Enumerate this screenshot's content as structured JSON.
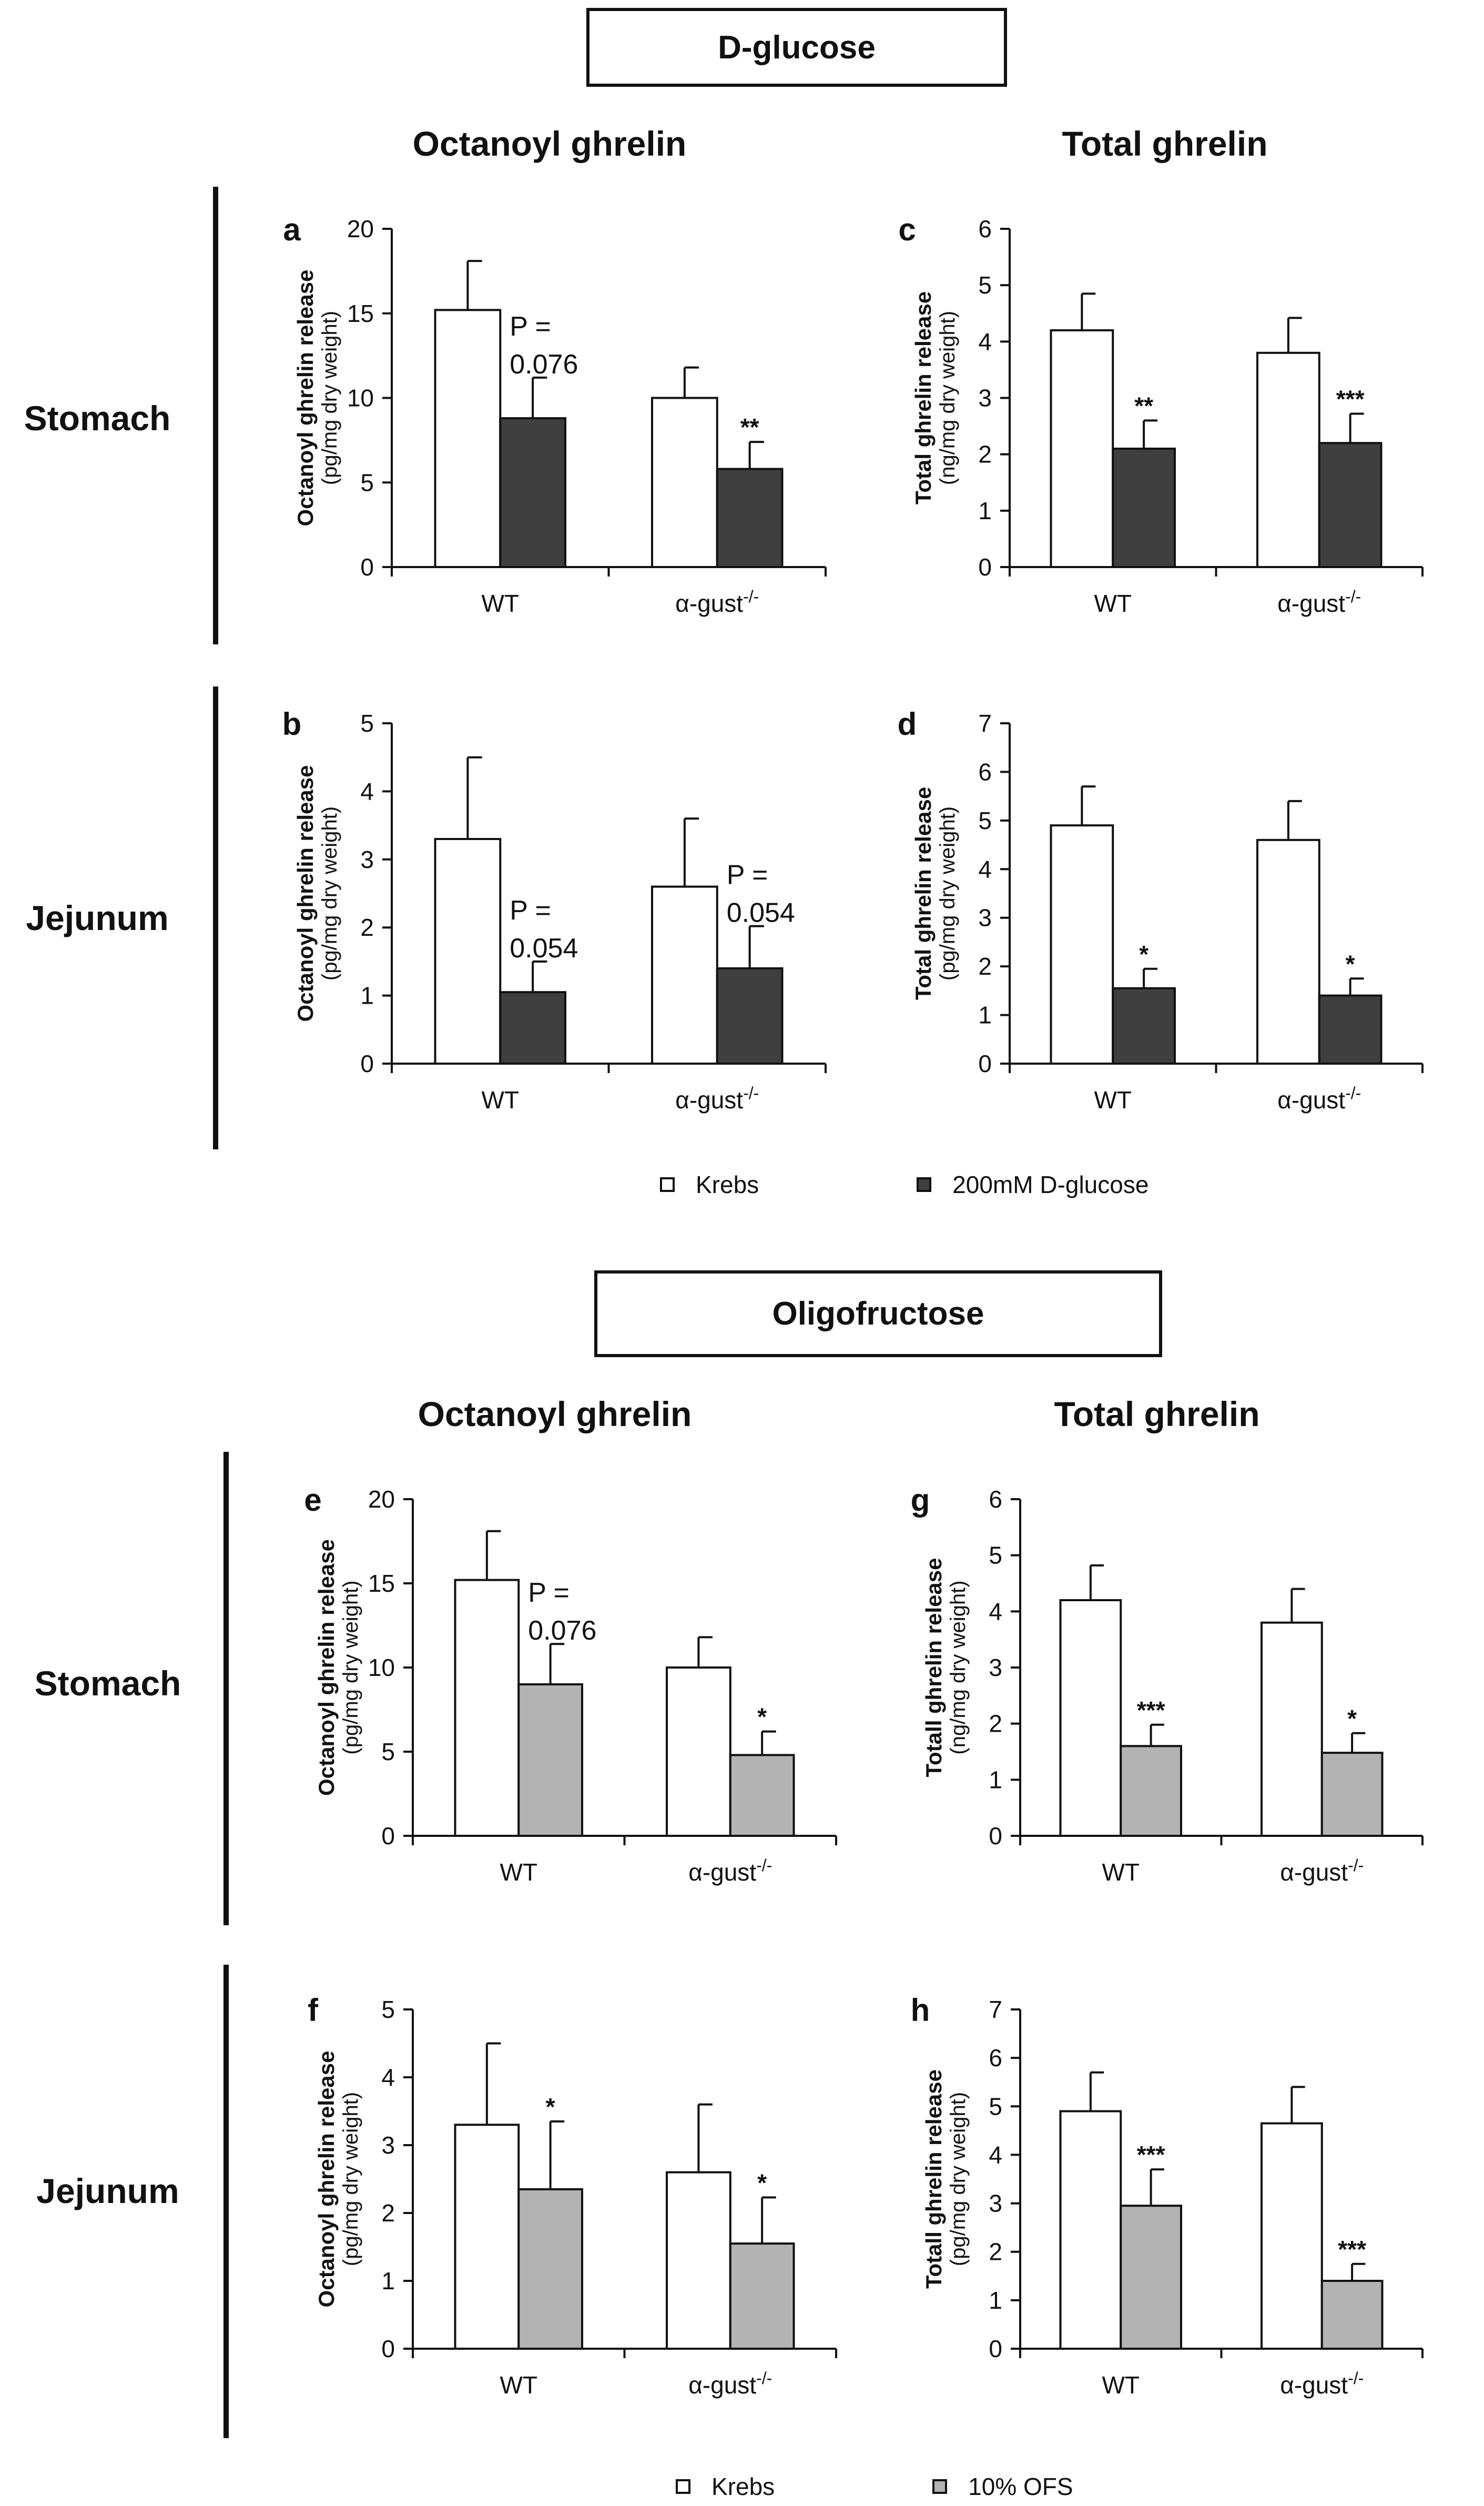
{
  "sections": [
    {
      "title": "D-glucose",
      "col_titles": [
        "Octanoyl ghrelin",
        "Total ghrelin"
      ],
      "row_labels": [
        "Stomach",
        "Jejunum"
      ],
      "legend": [
        {
          "label": "Krebs",
          "color": "#ffffff"
        },
        {
          "label": "200mM D-glucose",
          "color": "#3f3f3f"
        }
      ]
    },
    {
      "title": "Oligofructose",
      "col_titles": [
        "Octanoyl ghrelin",
        "Total ghrelin"
      ],
      "row_labels": [
        "Stomach",
        "Jejunum"
      ],
      "legend": [
        {
          "label": "Krebs",
          "color": "#ffffff"
        },
        {
          "label": "10% OFS",
          "color": "#b3b3b3"
        }
      ]
    }
  ],
  "chart_data": [
    {
      "type": "bar",
      "panel": "a",
      "title": "",
      "ylabel": "Octanoyl ghrelin release",
      "ylabel_sub": "(pg/mg dry weight)",
      "ylim": [
        0,
        20
      ],
      "yticks": [
        0,
        5,
        10,
        15,
        20
      ],
      "categories": [
        "WT",
        "α-gust-/-"
      ],
      "series": [
        {
          "name": "Krebs",
          "color": "#ffffff",
          "values": [
            15.2,
            10.0
          ],
          "errors": [
            2.9,
            1.8
          ]
        },
        {
          "name": "200mM D-glucose",
          "color": "#3f3f3f",
          "values": [
            8.8,
            5.8
          ],
          "errors": [
            2.4,
            1.6
          ]
        }
      ],
      "annotations": [
        {
          "series": 1,
          "index": 0,
          "text": "P =\n0.076"
        },
        {
          "series": 1,
          "index": 1,
          "text": "**"
        }
      ]
    },
    {
      "type": "bar",
      "panel": "b",
      "title": "",
      "ylabel": "Octanoyl ghrelin release",
      "ylabel_sub": "(pg/mg dry weight)",
      "ylim": [
        0,
        5
      ],
      "yticks": [
        0,
        1,
        2,
        3,
        4,
        5
      ],
      "categories": [
        "WT",
        "α-gust-/-"
      ],
      "series": [
        {
          "name": "Krebs",
          "color": "#ffffff",
          "values": [
            3.3,
            2.6
          ],
          "errors": [
            1.2,
            1.0
          ]
        },
        {
          "name": "200mM D-glucose",
          "color": "#3f3f3f",
          "values": [
            1.05,
            1.4
          ],
          "errors": [
            0.45,
            0.62
          ]
        }
      ],
      "annotations": [
        {
          "series": 1,
          "index": 0,
          "text": "P =\n0.054"
        },
        {
          "series": 1,
          "index": 1,
          "text": "P =\n0.054"
        }
      ]
    },
    {
      "type": "bar",
      "panel": "c",
      "title": "",
      "ylabel": "Total ghrelin release",
      "ylabel_sub": "(ng/mg dry weight)",
      "ylim": [
        0,
        6
      ],
      "yticks": [
        0,
        1,
        2,
        3,
        4,
        5,
        6
      ],
      "categories": [
        "WT",
        "α-gust-/-"
      ],
      "series": [
        {
          "name": "Krebs",
          "color": "#ffffff",
          "values": [
            4.2,
            3.8
          ],
          "errors": [
            0.65,
            0.62
          ]
        },
        {
          "name": "200mM D-glucose",
          "color": "#3f3f3f",
          "values": [
            2.1,
            2.2
          ],
          "errors": [
            0.5,
            0.52
          ]
        }
      ],
      "annotations": [
        {
          "series": 1,
          "index": 0,
          "text": "**"
        },
        {
          "series": 1,
          "index": 1,
          "text": "***"
        }
      ]
    },
    {
      "type": "bar",
      "panel": "d",
      "title": "",
      "ylabel": "Total ghrelin release",
      "ylabel_sub": "(pg/mg dry weight)",
      "ylim": [
        0,
        7
      ],
      "yticks": [
        0,
        1,
        2,
        3,
        4,
        5,
        6,
        7
      ],
      "categories": [
        "WT",
        "α-gust-/-"
      ],
      "series": [
        {
          "name": "Krebs",
          "color": "#ffffff",
          "values": [
            4.9,
            4.6
          ],
          "errors": [
            0.8,
            0.8
          ]
        },
        {
          "name": "200mM D-glucose",
          "color": "#3f3f3f",
          "values": [
            1.55,
            1.4
          ],
          "errors": [
            0.4,
            0.35
          ]
        }
      ],
      "annotations": [
        {
          "series": 1,
          "index": 0,
          "text": "*"
        },
        {
          "series": 1,
          "index": 1,
          "text": "*"
        }
      ]
    },
    {
      "type": "bar",
      "panel": "e",
      "title": "",
      "ylabel": "Octanoyl ghrelin release",
      "ylabel_sub": "(pg/mg dry weight)",
      "ylim": [
        0,
        20
      ],
      "yticks": [
        0,
        5,
        10,
        15,
        20
      ],
      "categories": [
        "WT",
        "α-gust-/-"
      ],
      "series": [
        {
          "name": "Krebs",
          "color": "#ffffff",
          "values": [
            15.2,
            10.0
          ],
          "errors": [
            2.9,
            1.8
          ]
        },
        {
          "name": "10% OFS",
          "color": "#b3b3b3",
          "values": [
            9.0,
            4.8
          ],
          "errors": [
            2.4,
            1.4
          ]
        }
      ],
      "annotations": [
        {
          "series": 1,
          "index": 0,
          "text": "P =\n0.076"
        },
        {
          "series": 1,
          "index": 1,
          "text": "*"
        }
      ]
    },
    {
      "type": "bar",
      "panel": "f",
      "title": "",
      "ylabel": "Octanoyl ghrelin release",
      "ylabel_sub": "(pg/mg dry weight)",
      "ylim": [
        0,
        5
      ],
      "yticks": [
        0,
        1,
        2,
        3,
        4,
        5
      ],
      "categories": [
        "WT",
        "α-gust-/-"
      ],
      "series": [
        {
          "name": "Krebs",
          "color": "#ffffff",
          "values": [
            3.3,
            2.6
          ],
          "errors": [
            1.2,
            1.0
          ]
        },
        {
          "name": "10% OFS",
          "color": "#b3b3b3",
          "values": [
            2.35,
            1.55
          ],
          "errors": [
            1.0,
            0.68
          ]
        }
      ],
      "annotations": [
        {
          "series": 1,
          "index": 0,
          "text": "*"
        },
        {
          "series": 1,
          "index": 1,
          "text": "*"
        }
      ]
    },
    {
      "type": "bar",
      "panel": "g",
      "title": "",
      "ylabel": "Totall ghrelin release",
      "ylabel_sub": "(ng/mg dry weight)",
      "ylim": [
        0,
        6
      ],
      "yticks": [
        0,
        1,
        2,
        3,
        4,
        5,
        6
      ],
      "categories": [
        "WT",
        "α-gust-/-"
      ],
      "series": [
        {
          "name": "Krebs",
          "color": "#ffffff",
          "values": [
            4.2,
            3.8
          ],
          "errors": [
            0.62,
            0.6
          ]
        },
        {
          "name": "10% OFS",
          "color": "#b3b3b3",
          "values": [
            1.6,
            1.48
          ],
          "errors": [
            0.38,
            0.35
          ]
        }
      ],
      "annotations": [
        {
          "series": 1,
          "index": 0,
          "text": "***"
        },
        {
          "series": 1,
          "index": 1,
          "text": "*"
        }
      ]
    },
    {
      "type": "bar",
      "panel": "h",
      "title": "",
      "ylabel": "Totall ghrelin release",
      "ylabel_sub": "(pg/mg dry weight)",
      "ylim": [
        0,
        7
      ],
      "yticks": [
        0,
        1,
        2,
        3,
        4,
        5,
        6,
        7
      ],
      "categories": [
        "WT",
        "α-gust-/-"
      ],
      "series": [
        {
          "name": "Krebs",
          "color": "#ffffff",
          "values": [
            4.9,
            4.65
          ],
          "errors": [
            0.8,
            0.75
          ]
        },
        {
          "name": "10% OFS",
          "color": "#b3b3b3",
          "values": [
            2.95,
            1.4
          ],
          "errors": [
            0.75,
            0.35
          ]
        }
      ],
      "annotations": [
        {
          "series": 1,
          "index": 0,
          "text": "***"
        },
        {
          "series": 1,
          "index": 1,
          "text": "***"
        }
      ]
    }
  ]
}
